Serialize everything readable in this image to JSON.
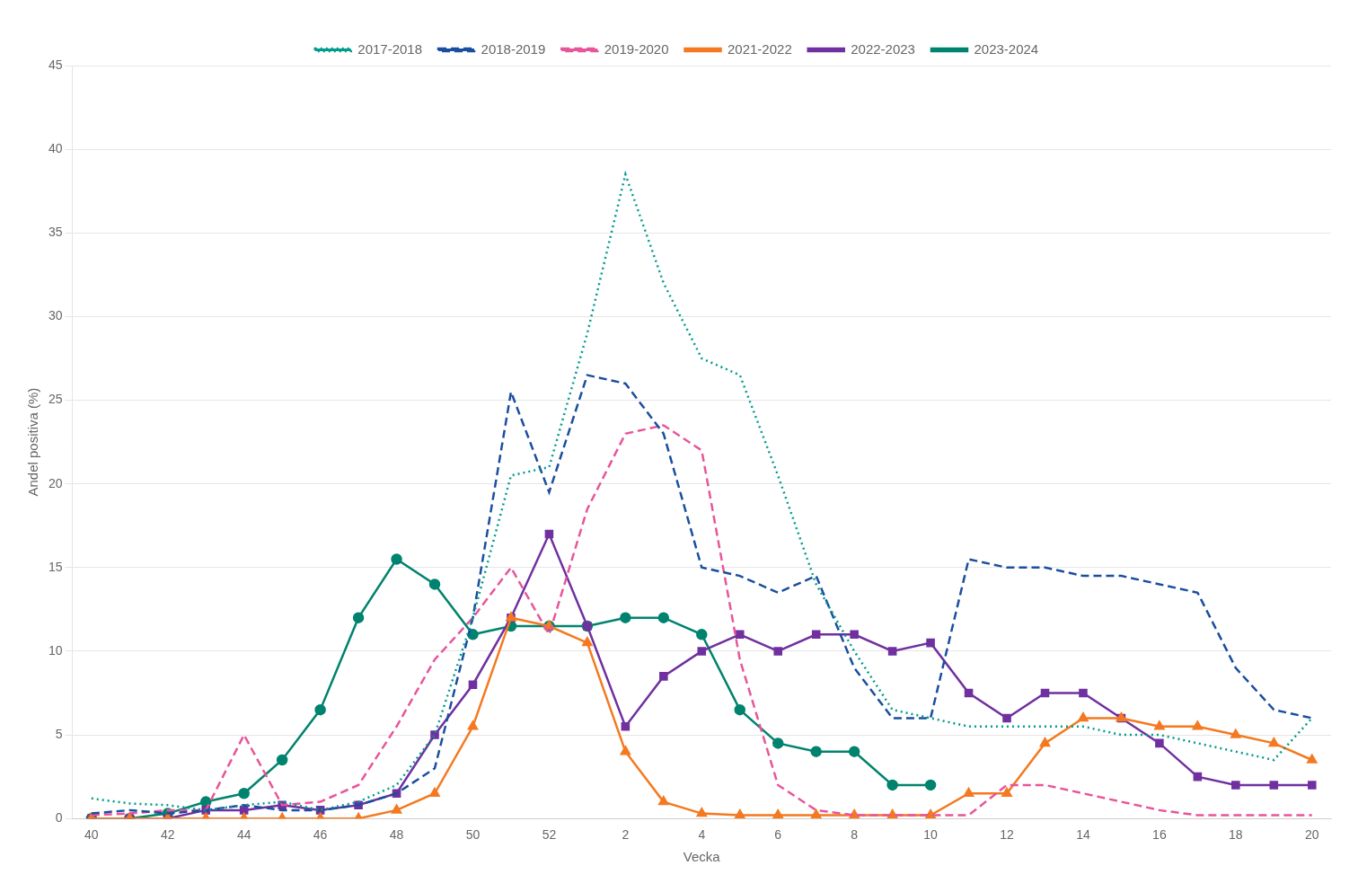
{
  "chart_data": {
    "type": "line",
    "xlabel": "Vecka",
    "ylabel": "Andel positiva (%)",
    "categories": [
      "40",
      null,
      "42",
      null,
      "44",
      null,
      "46",
      null,
      "48",
      null,
      "50",
      null,
      "52",
      null,
      "2",
      null,
      "4",
      null,
      "6",
      null,
      "8",
      null,
      "10",
      null,
      "12",
      null,
      "14",
      null,
      "16",
      null,
      "18",
      null,
      "20"
    ],
    "ylim": [
      0,
      45
    ],
    "yticks": [
      0,
      5,
      10,
      15,
      20,
      25,
      30,
      35,
      40,
      45
    ],
    "grid": true,
    "legend": "top",
    "series": [
      {
        "name": "2017-2018",
        "color": "#009B8D",
        "line_style": "dotted",
        "marker": null,
        "values": [
          1.2,
          0.9,
          0.8,
          0.5,
          0.8,
          1.0,
          0.5,
          1.0,
          2.0,
          5.0,
          12.0,
          20.5,
          21.0,
          29.0,
          38.5,
          32.0,
          27.5,
          26.5,
          20.5,
          14.0,
          10.0,
          6.5,
          6.0,
          5.5,
          5.5,
          5.5,
          5.5,
          5.0,
          5.0,
          4.5,
          4.0,
          3.5,
          6.0
        ]
      },
      {
        "name": "2018-2019",
        "color": "#1A4E9F",
        "line_style": "dashed",
        "marker": null,
        "values": [
          0.3,
          0.5,
          0.3,
          0.5,
          0.8,
          0.5,
          0.5,
          0.8,
          1.5,
          3.0,
          12.0,
          25.5,
          19.5,
          26.5,
          26.0,
          23.0,
          15.0,
          14.5,
          13.5,
          14.5,
          9.0,
          6.0,
          6.0,
          15.5,
          15.0,
          15.0,
          14.5,
          14.5,
          14.0,
          13.5,
          9.0,
          6.5,
          6.0
        ]
      },
      {
        "name": "2019-2020",
        "color": "#E8559A",
        "line_style": "dashed",
        "marker": null,
        "values": [
          0.2,
          0.3,
          0.5,
          0.5,
          5.0,
          0.8,
          1.0,
          2.0,
          5.5,
          9.5,
          12.0,
          15.0,
          11.0,
          18.5,
          23.0,
          23.5,
          22.0,
          9.5,
          2.0,
          0.5,
          0.2,
          0.2,
          0.2,
          0.2,
          2.0,
          2.0,
          1.5,
          1.0,
          0.5,
          0.2,
          0.2,
          0.2,
          0.2
        ]
      },
      {
        "name": "2021-2022",
        "color": "#F47920",
        "line_style": "solid",
        "marker": "triangle",
        "values": [
          0.0,
          0.0,
          0.0,
          0.0,
          0.0,
          0.0,
          0.0,
          0.0,
          0.5,
          1.5,
          5.5,
          12.0,
          11.5,
          10.5,
          4.0,
          1.0,
          0.3,
          0.2,
          0.2,
          0.2,
          0.2,
          0.2,
          0.2,
          1.5,
          1.5,
          4.5,
          6.0,
          6.0,
          5.5,
          5.5,
          5.0,
          4.5,
          3.5
        ]
      },
      {
        "name": "2022-2023",
        "color": "#7030A0",
        "line_style": "solid",
        "marker": "square",
        "values": [
          0.0,
          0.0,
          0.0,
          0.5,
          0.5,
          0.8,
          0.5,
          0.8,
          1.5,
          5.0,
          8.0,
          12.0,
          17.0,
          11.5,
          5.5,
          8.5,
          10.0,
          11.0,
          10.0,
          11.0,
          11.0,
          10.0,
          10.5,
          7.5,
          6.0,
          7.5,
          7.5,
          6.0,
          4.5,
          2.5,
          2.0,
          2.0,
          2.0
        ]
      },
      {
        "name": "2023-2024",
        "color": "#00836E",
        "line_style": "solid",
        "marker": "circle",
        "values": [
          0.0,
          0.0,
          0.3,
          1.0,
          1.5,
          3.5,
          6.5,
          12.0,
          15.5,
          14.0,
          11.0,
          11.5,
          11.5,
          11.5,
          12.0,
          12.0,
          11.0,
          6.5,
          4.5,
          4.0,
          4.0,
          2.0,
          2.0,
          null,
          null,
          null,
          null,
          null,
          null,
          null,
          null,
          null,
          null
        ]
      }
    ]
  }
}
